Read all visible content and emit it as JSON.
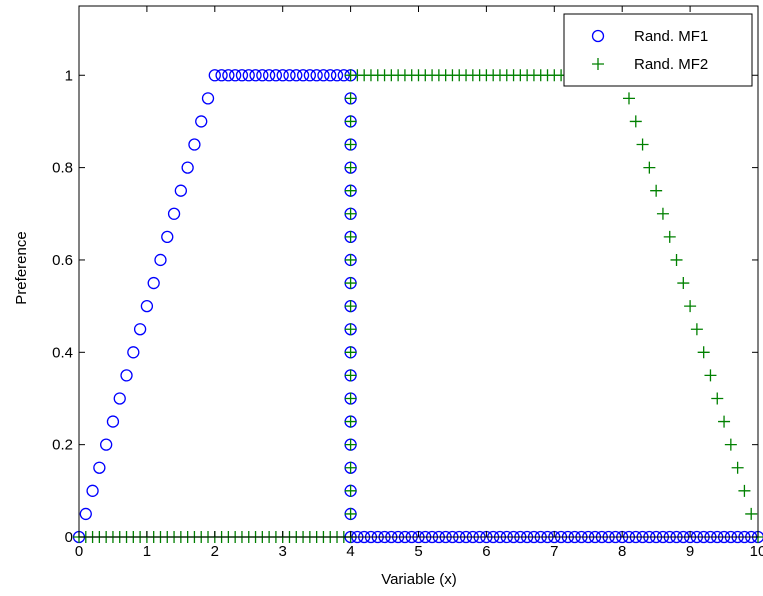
{
  "chart_data": {
    "type": "scatter",
    "title": "",
    "xlabel": "Variable (x)",
    "ylabel": "Preference",
    "xlim": [
      0,
      10
    ],
    "ylim": [
      0,
      1.15
    ],
    "x_ticks": [
      "0",
      "1",
      "2",
      "3",
      "4",
      "5",
      "6",
      "7",
      "8",
      "9",
      "10"
    ],
    "y_ticks": [
      "0",
      "0.2",
      "0.4",
      "0.6",
      "0.8",
      "1"
    ],
    "grid": false,
    "legend_position": "top-right",
    "series": [
      {
        "name": "Rand. MF1",
        "marker": "circle",
        "color": "#0000ff",
        "description": "trapezoidal membership: rises linearly from 0 at x=0 to 1 at x=2, holds 1 until x=4, drops vertically at x=4, 0 until x=10",
        "segments": [
          {
            "x_start": 0,
            "x_end": 2,
            "step": 0.1,
            "y_from": 0,
            "y_to": 1
          },
          {
            "x_start": 2.1,
            "x_end": 3.9,
            "step": 0.1,
            "y_from": 1,
            "y_to": 1
          },
          {
            "x_fixed": 4,
            "y_values": [
              1,
              0.95,
              0.9,
              0.85,
              0.8,
              0.75,
              0.7,
              0.65,
              0.6,
              0.55,
              0.5,
              0.45,
              0.4,
              0.35,
              0.3,
              0.25,
              0.2,
              0.15,
              0.1,
              0.05,
              0
            ]
          },
          {
            "x_start": 4.1,
            "x_end": 10,
            "step": 0.1,
            "y_from": 0,
            "y_to": 0
          }
        ]
      },
      {
        "name": "Rand. MF2",
        "marker": "plus",
        "color": "#008000",
        "description": "0 until x=4, rises vertically at x=4 to 1, holds 1 until x=8, falls linearly to 0 at x=10",
        "segments": [
          {
            "x_start": 0,
            "x_end": 3.9,
            "step": 0.1,
            "y_from": 0,
            "y_to": 0
          },
          {
            "x_fixed": 4,
            "y_values": [
              0,
              0.05,
              0.1,
              0.15,
              0.2,
              0.25,
              0.3,
              0.35,
              0.4,
              0.45,
              0.5,
              0.55,
              0.6,
              0.65,
              0.7,
              0.75,
              0.8,
              0.85,
              0.9,
              0.95,
              1
            ]
          },
          {
            "x_start": 4.1,
            "x_end": 8,
            "step": 0.1,
            "y_from": 1,
            "y_to": 1
          },
          {
            "x_start": 8.1,
            "x_end": 10,
            "step": 0.1,
            "y_from": 0.95,
            "y_to": 0
          }
        ]
      }
    ]
  }
}
